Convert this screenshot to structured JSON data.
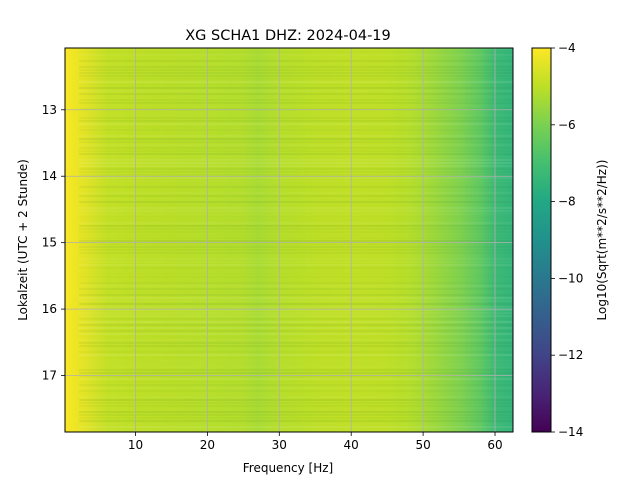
{
  "chart_data": {
    "type": "heatmap",
    "title": "XG SCHA1  DHZ: 2024-04-19",
    "xlabel": "Frequency [Hz]",
    "ylabel": "Lokalzeit (UTC + 2 Stunde)",
    "xlim": [
      0.2,
      62.5
    ],
    "ylim": [
      12.07,
      17.85
    ],
    "y_inverted": true,
    "xticks": [
      10,
      20,
      30,
      40,
      50,
      60
    ],
    "yticks": [
      13,
      14,
      15,
      16,
      17
    ],
    "grid": true,
    "colormap": "viridis",
    "colorbar": {
      "label": "Log10(Sqrt(m**2/s**2/Hz))",
      "range": [
        -14,
        -4
      ],
      "ticks": [
        -4,
        -6,
        -8,
        -10,
        -12,
        -14
      ]
    },
    "spectrum_profile": {
      "frequency_hz": [
        0.2,
        2,
        4,
        6,
        10,
        15,
        20,
        25,
        27,
        30,
        35,
        40,
        45,
        48,
        50,
        55,
        58,
        60,
        62.5
      ],
      "log_amplitude": [
        -4.05,
        -4.3,
        -4.6,
        -4.9,
        -5.0,
        -5.05,
        -5.1,
        -5.15,
        -5.3,
        -5.1,
        -5.0,
        -4.95,
        -5.0,
        -5.1,
        -5.3,
        -5.9,
        -6.5,
        -7.2,
        -7.5
      ]
    }
  }
}
